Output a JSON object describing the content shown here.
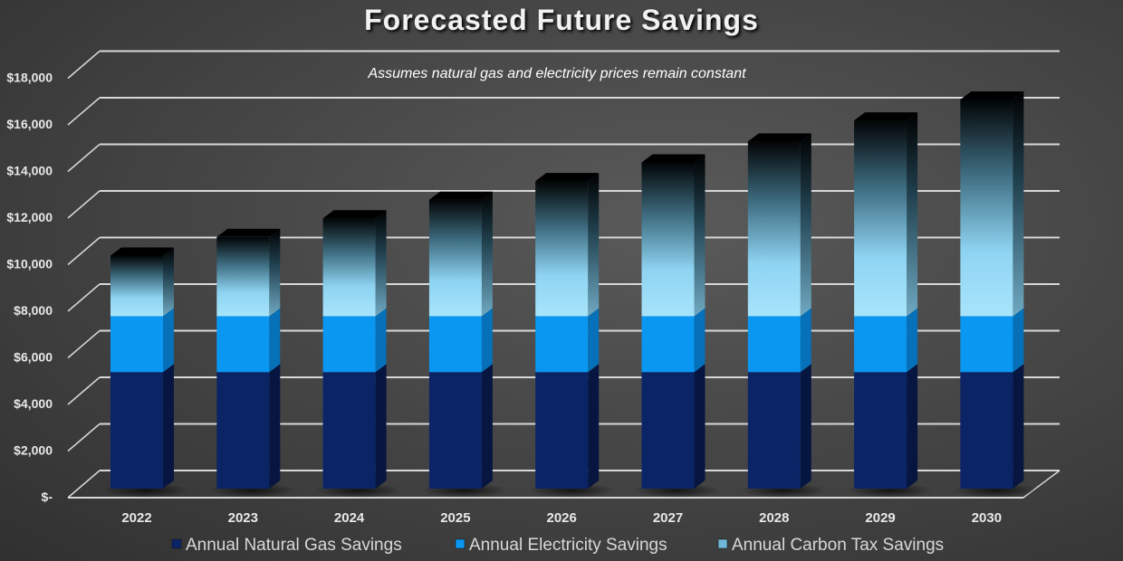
{
  "chart_data": {
    "type": "bar",
    "stacked": true,
    "style": "3d",
    "title": "Forecasted Future Savings",
    "subtitle": "Assumes natural gas and electricity prices remain constant",
    "xlabel": "",
    "ylabel": "",
    "ylim": [
      0,
      18000
    ],
    "yticks": [
      0,
      2000,
      4000,
      6000,
      8000,
      10000,
      12000,
      14000,
      16000,
      18000
    ],
    "ytick_labels": [
      "$-",
      "$2,000",
      "$4,000",
      "$6,000",
      "$8,000",
      "$10,000",
      "$12,000",
      "$14,000",
      "$16,000",
      "$18,000"
    ],
    "grid": true,
    "legend_position": "bottom",
    "categories": [
      "2022",
      "2023",
      "2024",
      "2025",
      "2026",
      "2027",
      "2028",
      "2029",
      "2030"
    ],
    "series": [
      {
        "name": "Annual Natural Gas Savings",
        "color": "#0a2466",
        "values": [
          5000,
          5000,
          5000,
          5000,
          5000,
          5000,
          5000,
          5000,
          5000
        ]
      },
      {
        "name": "Annual Electricity Savings",
        "color": "#0a96f0",
        "values": [
          2400,
          2400,
          2400,
          2400,
          2400,
          2400,
          2400,
          2400,
          2400
        ]
      },
      {
        "name": "Annual Carbon Tax Savings",
        "color": "#8fd6f5",
        "values": [
          2600,
          3400,
          4200,
          5000,
          5800,
          6600,
          7500,
          8400,
          9300
        ]
      }
    ]
  }
}
